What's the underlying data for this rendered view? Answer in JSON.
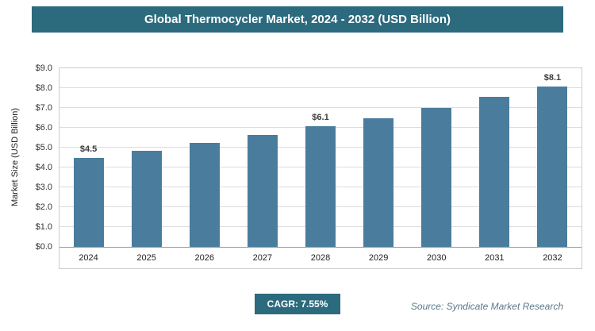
{
  "title": "Global Thermocycler Market, 2024 - 2032 (USD Billion)",
  "chart_data": {
    "type": "bar",
    "categories": [
      "2024",
      "2025",
      "2026",
      "2027",
      "2028",
      "2029",
      "2030",
      "2031",
      "2032"
    ],
    "values": [
      4.5,
      4.85,
      5.25,
      5.65,
      6.1,
      6.5,
      7.0,
      7.55,
      8.1
    ],
    "value_labels": [
      "$4.5",
      "",
      "",
      "",
      "$6.1",
      "",
      "",
      "",
      "$8.1"
    ],
    "title": "Global Thermocycler Market, 2024 - 2032 (USD Billion)",
    "xlabel": "",
    "ylabel": "Market Size (USD Billion)",
    "ylim": [
      0,
      9
    ],
    "ytick_step": 1,
    "ytick_labels": [
      "$0.0",
      "$1.0",
      "$2.0",
      "$3.0",
      "$4.0",
      "$5.0",
      "$6.0",
      "$7.0",
      "$8.0",
      "$9.0"
    ],
    "grid": true,
    "legend": "none",
    "bar_color": "#4A7D9D"
  },
  "footer": {
    "cagr_label": "CAGR: 7.55%",
    "source": "Source: Syndicate Market Research"
  },
  "colors": {
    "banner_bg": "#2C6A7E",
    "badge_bg": "#2C6A7E",
    "bar": "#4A7D9D"
  }
}
